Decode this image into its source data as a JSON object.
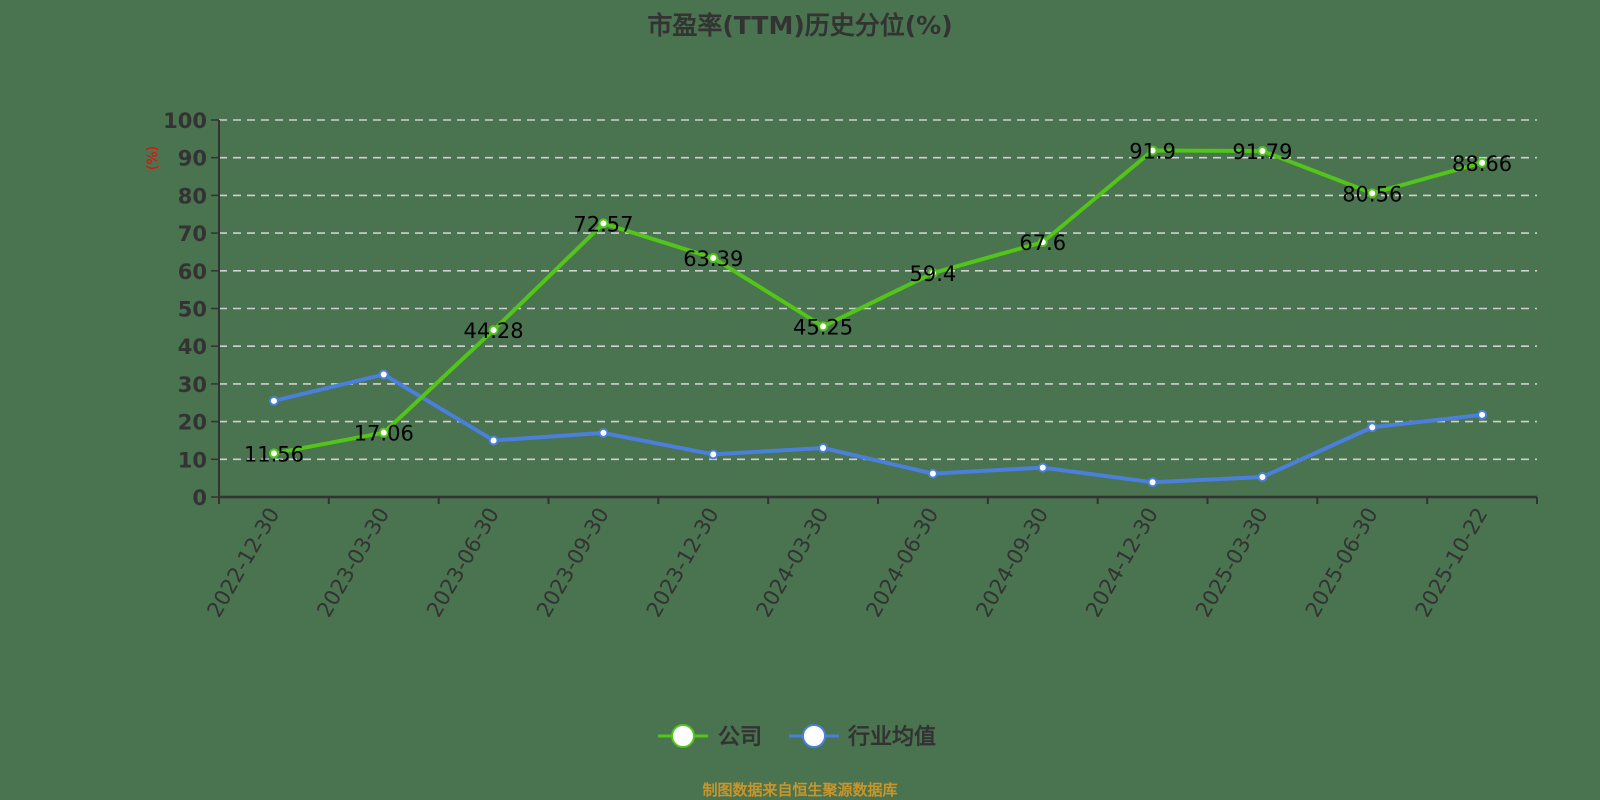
{
  "chart_data": {
    "type": "line",
    "title": "市盈率(TTM)历史分位(%)",
    "xlabel": "",
    "ylabel": "(%)",
    "ylim": [
      0,
      100
    ],
    "yticks": [
      0,
      10,
      20,
      30,
      40,
      50,
      60,
      70,
      80,
      90,
      100
    ],
    "grid": true,
    "legend_position": "bottom",
    "categories": [
      "2022-12-30",
      "2023-03-30",
      "2023-06-30",
      "2023-09-30",
      "2023-12-30",
      "2024-03-30",
      "2024-06-30",
      "2024-09-30",
      "2024-12-30",
      "2025-03-30",
      "2025-06-30",
      "2025-10-22"
    ],
    "series": [
      {
        "name": "公司",
        "color": "#52c41a",
        "show_labels": true,
        "values": [
          11.56,
          17.06,
          44.28,
          72.57,
          63.39,
          45.25,
          59.4,
          67.6,
          91.9,
          91.79,
          80.56,
          88.66
        ]
      },
      {
        "name": "行业均值",
        "color": "#4a7fdc",
        "show_labels": false,
        "values": [
          25.5,
          32.5,
          15.0,
          17.0,
          11.3,
          13.0,
          6.2,
          7.8,
          3.9,
          5.3,
          18.5,
          21.8
        ]
      }
    ],
    "source": "制图数据来自恒生聚源数据库"
  },
  "colors": {
    "background": "#4a7350",
    "axis": "#333333",
    "grid": "#d0d0d0",
    "unit_label": "#ff0000",
    "source_text": "#c8952a"
  }
}
